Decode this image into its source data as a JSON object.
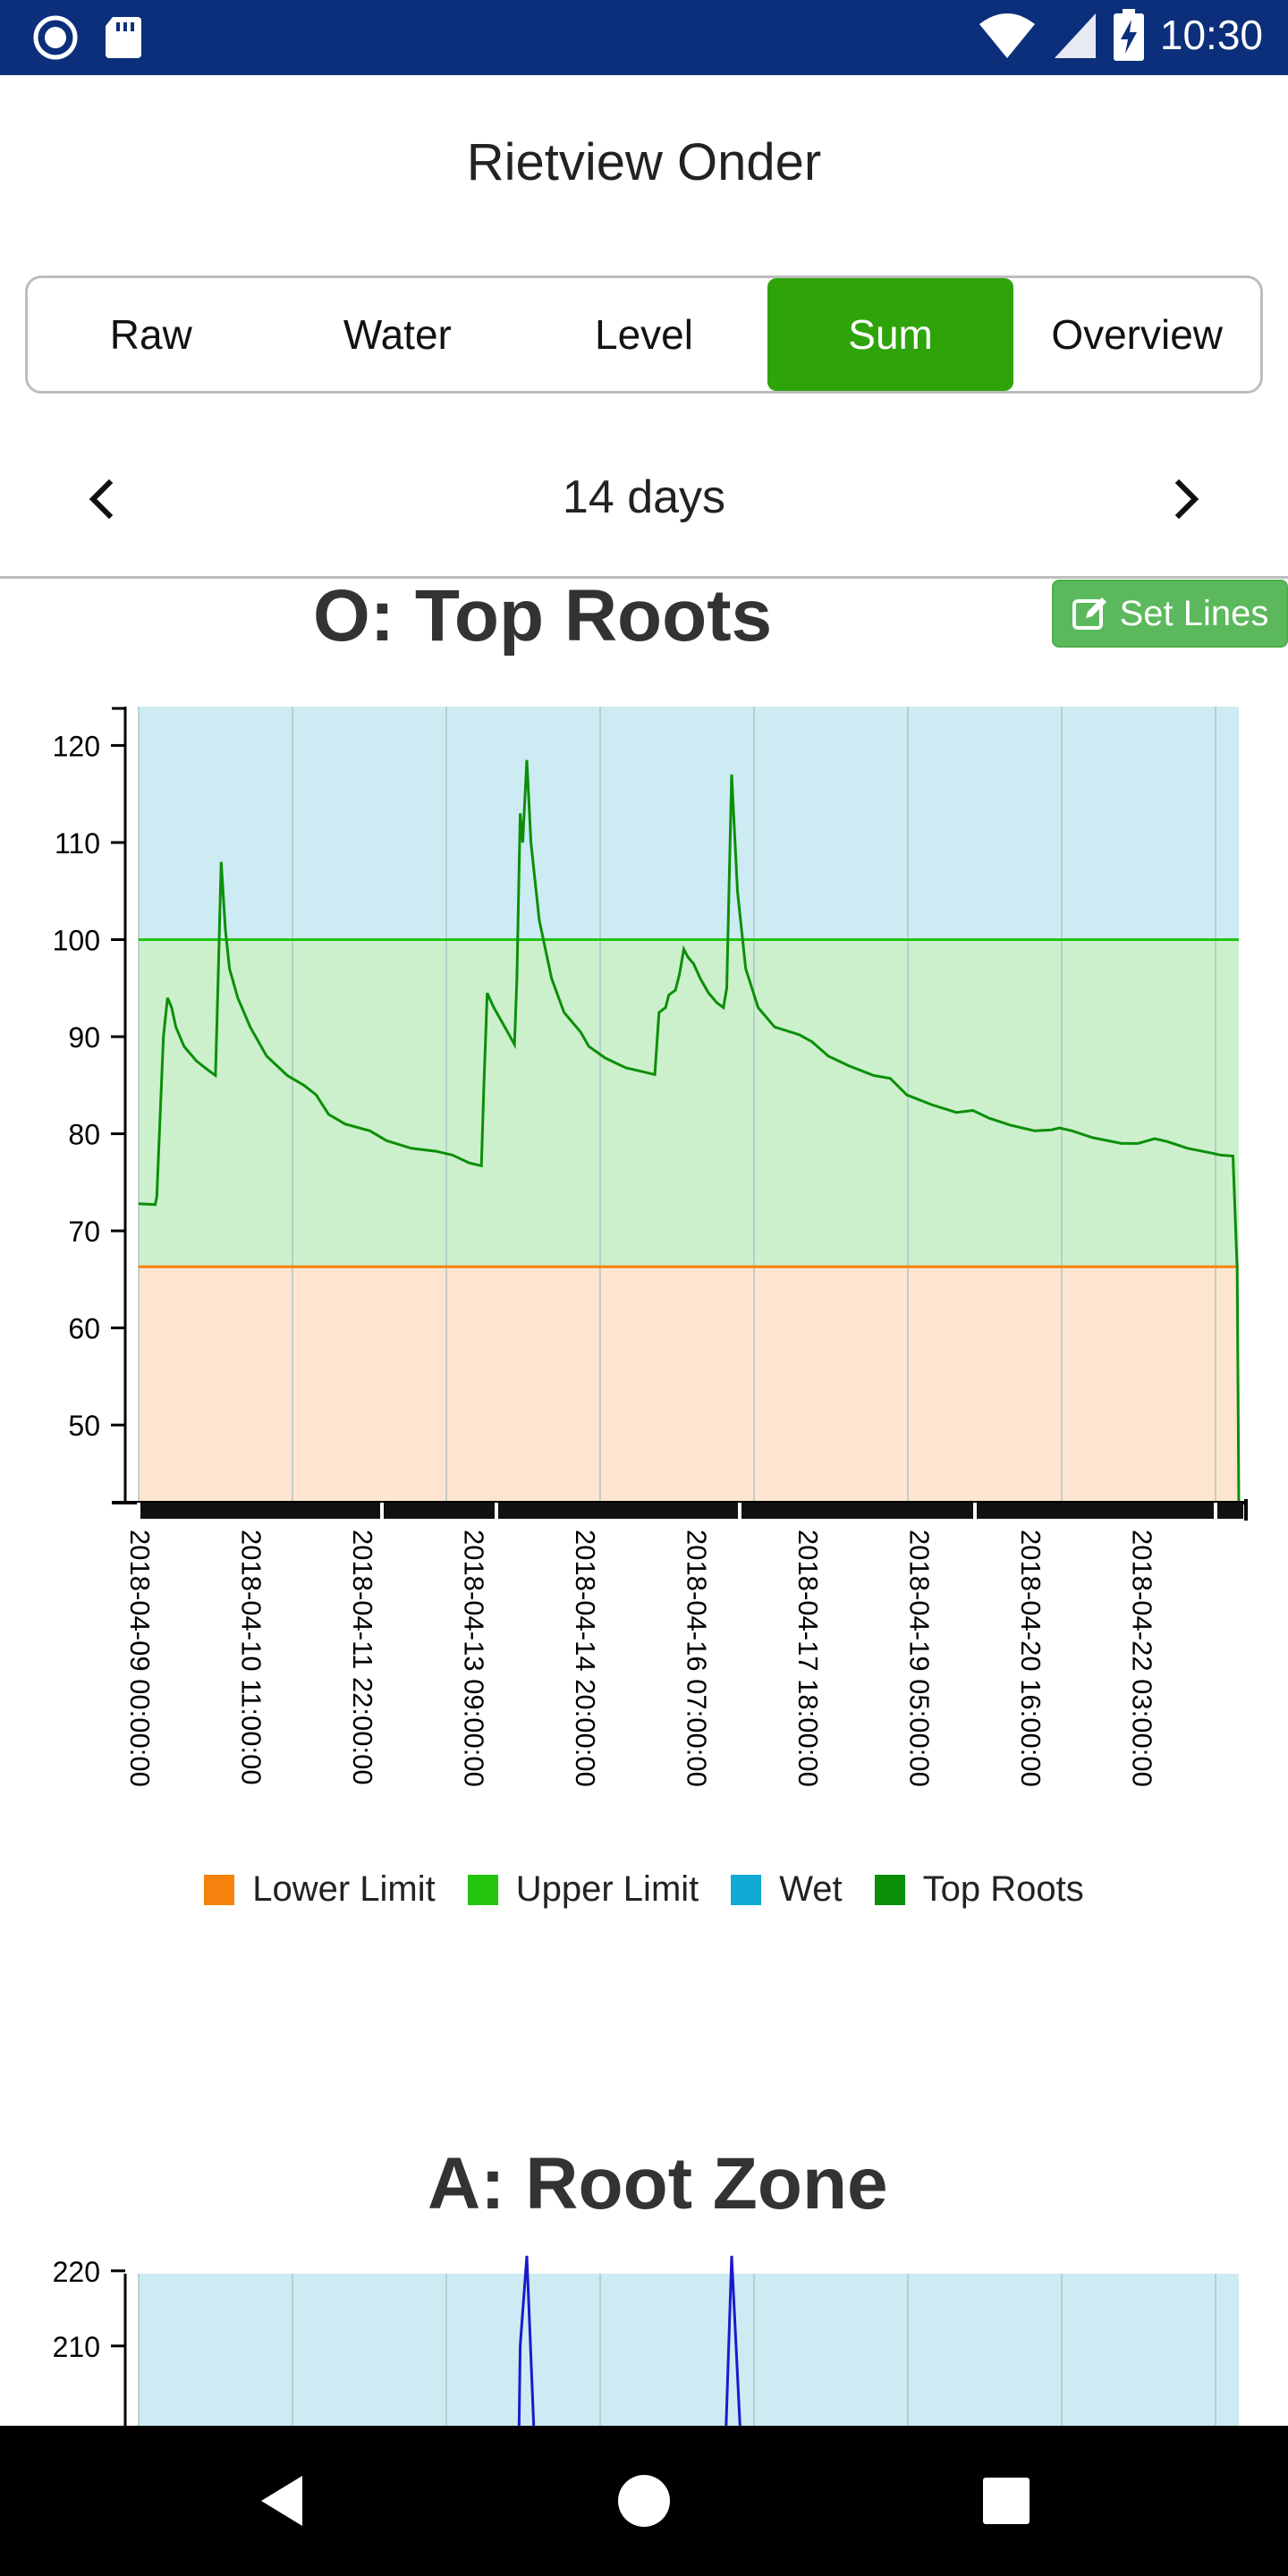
{
  "status_bar": {
    "time": "10:30",
    "icons": [
      "app-circle-icon",
      "sd-card-icon",
      "wifi-icon",
      "signal-icon",
      "battery-charging-icon"
    ]
  },
  "app": {
    "title": "Rietview Onder"
  },
  "tabs": [
    {
      "label": "Raw",
      "active": false
    },
    {
      "label": "Water",
      "active": false
    },
    {
      "label": "Level",
      "active": false
    },
    {
      "label": "Sum",
      "active": true
    },
    {
      "label": "Overview",
      "active": false
    }
  ],
  "range": {
    "label": "14 days",
    "prev_icon": "chevron-left-icon",
    "next_icon": "chevron-right-icon"
  },
  "chart1": {
    "set_lines_label": "Set Lines",
    "legend": [
      {
        "label": "Lower Limit",
        "color": "#f5820d"
      },
      {
        "label": "Upper Limit",
        "color": "#22c40e"
      },
      {
        "label": "Wet",
        "color": "#12a9d4"
      },
      {
        "label": "Top Roots",
        "color": "#0b8f09"
      }
    ]
  },
  "chart_data": [
    {
      "type": "line",
      "title": "O: Top Roots",
      "xlabel": "",
      "ylabel": "",
      "ylim": [
        42,
        124
      ],
      "y_ticks": [
        50,
        60,
        70,
        80,
        90,
        100,
        110,
        120
      ],
      "x_tick_labels": [
        "2018-04-09 00:00:00",
        "2018-04-10 11:00:00",
        "2018-04-11 22:00:00",
        "2018-04-13 09:00:00",
        "2018-04-14 20:00:00",
        "2018-04-16 07:00:00",
        "2018-04-17 18:00:00",
        "2018-04-19 05:00:00",
        "2018-04-20 16:00:00",
        "2018-04-22 03:00:00"
      ],
      "bands": {
        "lower_limit": 66.3,
        "upper_limit": 100,
        "colors": {
          "wet": "#cdebf2",
          "ok": "#ccf0cc",
          "dry": "#fde5cf"
        }
      },
      "grid": true,
      "legend_position": "bottom",
      "series": [
        {
          "name": "Top Roots",
          "color": "#0b8f09",
          "points": [
            [
              0.0,
              72.8
            ],
            [
              0.2,
              72.7
            ],
            [
              0.22,
              73.5
            ],
            [
              0.3,
              90.0
            ],
            [
              0.35,
              94.0
            ],
            [
              0.4,
              93.0
            ],
            [
              0.45,
              91.0
            ],
            [
              0.55,
              89.0
            ],
            [
              0.7,
              87.5
            ],
            [
              0.85,
              86.5
            ],
            [
              0.93,
              86.0
            ],
            [
              0.96,
              95.0
            ],
            [
              1.0,
              108.0
            ],
            [
              1.05,
              101.0
            ],
            [
              1.1,
              97.0
            ],
            [
              1.2,
              94.0
            ],
            [
              1.35,
              91.0
            ],
            [
              1.55,
              88.0
            ],
            [
              1.8,
              86.0
            ],
            [
              2.0,
              85.0
            ],
            [
              2.15,
              84.0
            ],
            [
              2.3,
              82.0
            ],
            [
              2.5,
              81.0
            ],
            [
              2.8,
              80.3
            ],
            [
              3.0,
              79.3
            ],
            [
              3.3,
              78.5
            ],
            [
              3.6,
              78.2
            ],
            [
              3.8,
              77.8
            ],
            [
              4.0,
              77.0
            ],
            [
              4.15,
              76.7
            ],
            [
              4.18,
              85.0
            ],
            [
              4.22,
              94.5
            ],
            [
              4.3,
              93.0
            ],
            [
              4.4,
              91.5
            ],
            [
              4.55,
              89.2
            ],
            [
              4.58,
              96.0
            ],
            [
              4.62,
              113.0
            ],
            [
              4.65,
              110.0
            ],
            [
              4.7,
              118.5
            ],
            [
              4.75,
              110.0
            ],
            [
              4.85,
              102.0
            ],
            [
              5.0,
              96.0
            ],
            [
              5.15,
              92.5
            ],
            [
              5.35,
              90.5
            ],
            [
              5.45,
              89.0
            ],
            [
              5.65,
              87.8
            ],
            [
              5.9,
              86.8
            ],
            [
              6.15,
              86.3
            ],
            [
              6.25,
              86.1
            ],
            [
              6.3,
              92.5
            ],
            [
              6.38,
              93.0
            ],
            [
              6.42,
              94.3
            ],
            [
              6.5,
              94.8
            ],
            [
              6.55,
              96.5
            ],
            [
              6.6,
              99.0
            ],
            [
              6.65,
              98.2
            ],
            [
              6.72,
              97.5
            ],
            [
              6.8,
              96.0
            ],
            [
              6.9,
              94.5
            ],
            [
              7.0,
              93.5
            ],
            [
              7.08,
              93.0
            ],
            [
              7.12,
              95.0
            ],
            [
              7.18,
              117.0
            ],
            [
              7.25,
              105.0
            ],
            [
              7.35,
              97.0
            ],
            [
              7.5,
              93.0
            ],
            [
              7.7,
              91.0
            ],
            [
              8.0,
              90.2
            ],
            [
              8.15,
              89.5
            ],
            [
              8.35,
              88.0
            ],
            [
              8.6,
              87.0
            ],
            [
              8.9,
              86.0
            ],
            [
              9.1,
              85.7
            ],
            [
              9.3,
              84.0
            ],
            [
              9.6,
              83.0
            ],
            [
              9.9,
              82.2
            ],
            [
              10.1,
              82.4
            ],
            [
              10.3,
              81.6
            ],
            [
              10.55,
              80.9
            ],
            [
              10.85,
              80.3
            ],
            [
              11.05,
              80.4
            ],
            [
              11.15,
              80.6
            ],
            [
              11.3,
              80.3
            ],
            [
              11.55,
              79.6
            ],
            [
              11.9,
              79.0
            ],
            [
              12.1,
              79.0
            ],
            [
              12.3,
              79.5
            ],
            [
              12.45,
              79.2
            ],
            [
              12.7,
              78.5
            ],
            [
              13.0,
              78.0
            ],
            [
              13.1,
              77.8
            ],
            [
              13.25,
              77.7
            ],
            [
              13.3,
              66.0
            ],
            [
              13.32,
              42.0
            ]
          ]
        },
        {
          "name": "Upper Limit",
          "color": "#22c40e",
          "values": [
            100,
            100
          ]
        },
        {
          "name": "Lower Limit",
          "color": "#f5820d",
          "values": [
            66.3,
            66.3
          ]
        }
      ]
    },
    {
      "type": "line",
      "title": "A: Root Zone",
      "xlabel": "",
      "ylabel": "",
      "y_ticks": [
        210,
        220
      ],
      "grid": true,
      "series": [
        {
          "color": "#1a1acc",
          "points": [
            [
              4.6,
              195
            ],
            [
              4.62,
              210
            ],
            [
              4.7,
              222
            ],
            [
              4.8,
              195
            ],
            [
              7.1,
              195
            ],
            [
              7.18,
              222
            ],
            [
              7.3,
              195
            ]
          ]
        }
      ]
    }
  ]
}
